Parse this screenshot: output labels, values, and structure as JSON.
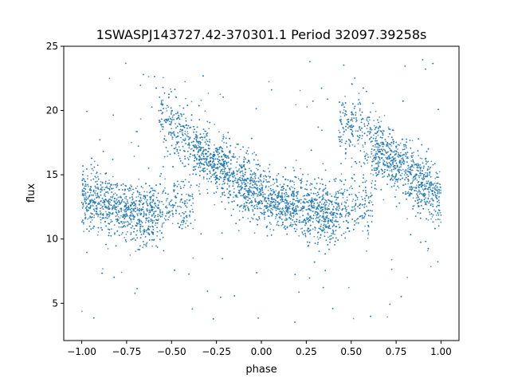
{
  "chart_data": {
    "type": "scatter",
    "title": "1SWASPJ143727.42-370301.1 Period 32097.39258s",
    "xlabel": "phase",
    "ylabel": "flux",
    "xlim": [
      -1.1,
      1.1
    ],
    "ylim": [
      2.1,
      25
    ],
    "xticks": [
      -1.0,
      -0.75,
      -0.5,
      -0.25,
      0.0,
      0.25,
      0.5,
      0.75,
      1.0
    ],
    "xtick_labels": [
      "−1.00",
      "−0.75",
      "−0.50",
      "−0.25",
      "0.00",
      "0.25",
      "0.50",
      "0.75",
      "1.00"
    ],
    "yticks": [
      5,
      10,
      15,
      20,
      25
    ],
    "ytick_labels": [
      "5",
      "10",
      "15",
      "20",
      "25"
    ],
    "grid": false,
    "color": "#1f77b4",
    "x_range": [
      -1.0,
      1.0
    ],
    "folded_curve": {
      "phase": [
        0,
        0.1,
        0.2,
        0.3,
        0.4,
        0.45,
        0.5,
        0.55,
        0.6,
        0.7,
        0.8,
        0.9,
        1.0
      ],
      "median_flux": [
        13.3,
        12.8,
        12.4,
        12.0,
        11.8,
        12.3,
        17.0,
        18.3,
        17.3,
        16.3,
        15.3,
        14.3,
        13.3
      ]
    },
    "scatter_std": 1.15,
    "outlier_fraction": 0.04,
    "outlier_flux_range": [
      3,
      24
    ],
    "n_points": 7000
  }
}
